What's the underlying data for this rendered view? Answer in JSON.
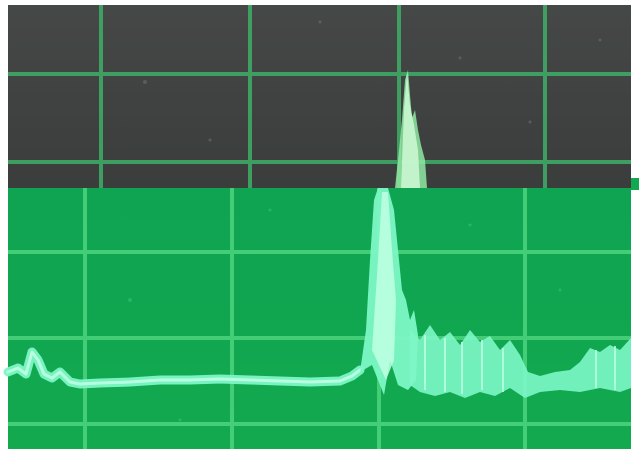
{
  "image": {
    "description_type": "oscilloscope-screen-photos",
    "panels": [
      {
        "id": "top",
        "theme": "dark-screen",
        "background": "#3f4241",
        "grid_color": "#3fa865",
        "trace_color": "#8fe8a2"
      },
      {
        "id": "bottom",
        "theme": "bright-green-screen",
        "background": "#11a84f",
        "grid_color": "#4ed981",
        "trace_color": "#7df7c6"
      }
    ]
  }
}
